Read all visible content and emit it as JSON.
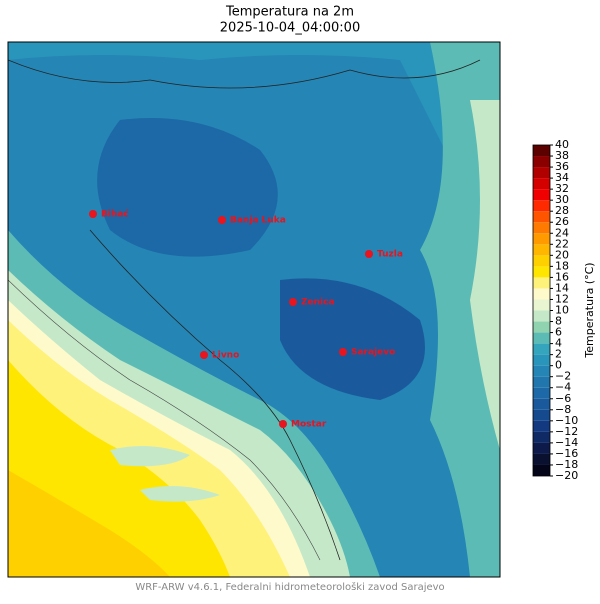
{
  "header": {
    "title": "Temperatura na 2m",
    "subtitle": "2025-10-04_04:00:00"
  },
  "cities": [
    {
      "name": "Bihać"
    },
    {
      "name": "Banja Luka"
    },
    {
      "name": "Tuzla"
    },
    {
      "name": "Zenica"
    },
    {
      "name": "Livno"
    },
    {
      "name": "Sarajevo"
    },
    {
      "name": "Mostar"
    }
  ],
  "colorbar": {
    "label": "Temperatura (°C)",
    "lim": [
      -20,
      40
    ],
    "ticks": [
      {
        "value": -20,
        "label": "−20"
      },
      {
        "value": -18,
        "label": "−18"
      },
      {
        "value": -16,
        "label": "−16"
      },
      {
        "value": -14,
        "label": "−14"
      },
      {
        "value": -12,
        "label": "−12"
      },
      {
        "value": -10,
        "label": "−10"
      },
      {
        "value": -8,
        "label": "−8"
      },
      {
        "value": -6,
        "label": "−6"
      },
      {
        "value": -4,
        "label": "−4"
      },
      {
        "value": -2,
        "label": "−2"
      },
      0,
      2,
      4,
      6,
      8,
      10,
      12,
      14,
      16,
      18,
      20,
      22,
      24,
      26,
      28,
      30,
      32,
      34,
      36,
      38,
      40
    ],
    "colors": [
      "#05051a",
      "#0a1030",
      "#0d1a4a",
      "#102a66",
      "#133a80",
      "#164a8f",
      "#1a5a9c",
      "#1d68a6",
      "#2176ae",
      "#2585b5",
      "#2a95bb",
      "#35a5bd",
      "#5cbcb5",
      "#8fd3b0",
      "#c5e9c8",
      "#e8f5d0",
      "#fffacc",
      "#fff27a",
      "#ffe600",
      "#ffd000",
      "#ffb600",
      "#ff9a00",
      "#ff7a00",
      "#ff5500",
      "#ff2a00",
      "#f00000",
      "#d40000",
      "#b00000",
      "#8a0000",
      "#5c0000"
    ]
  },
  "footer": "WRF-ARW v4.6.1, Federalni hidrometeorološki zavod Sarajevo"
}
